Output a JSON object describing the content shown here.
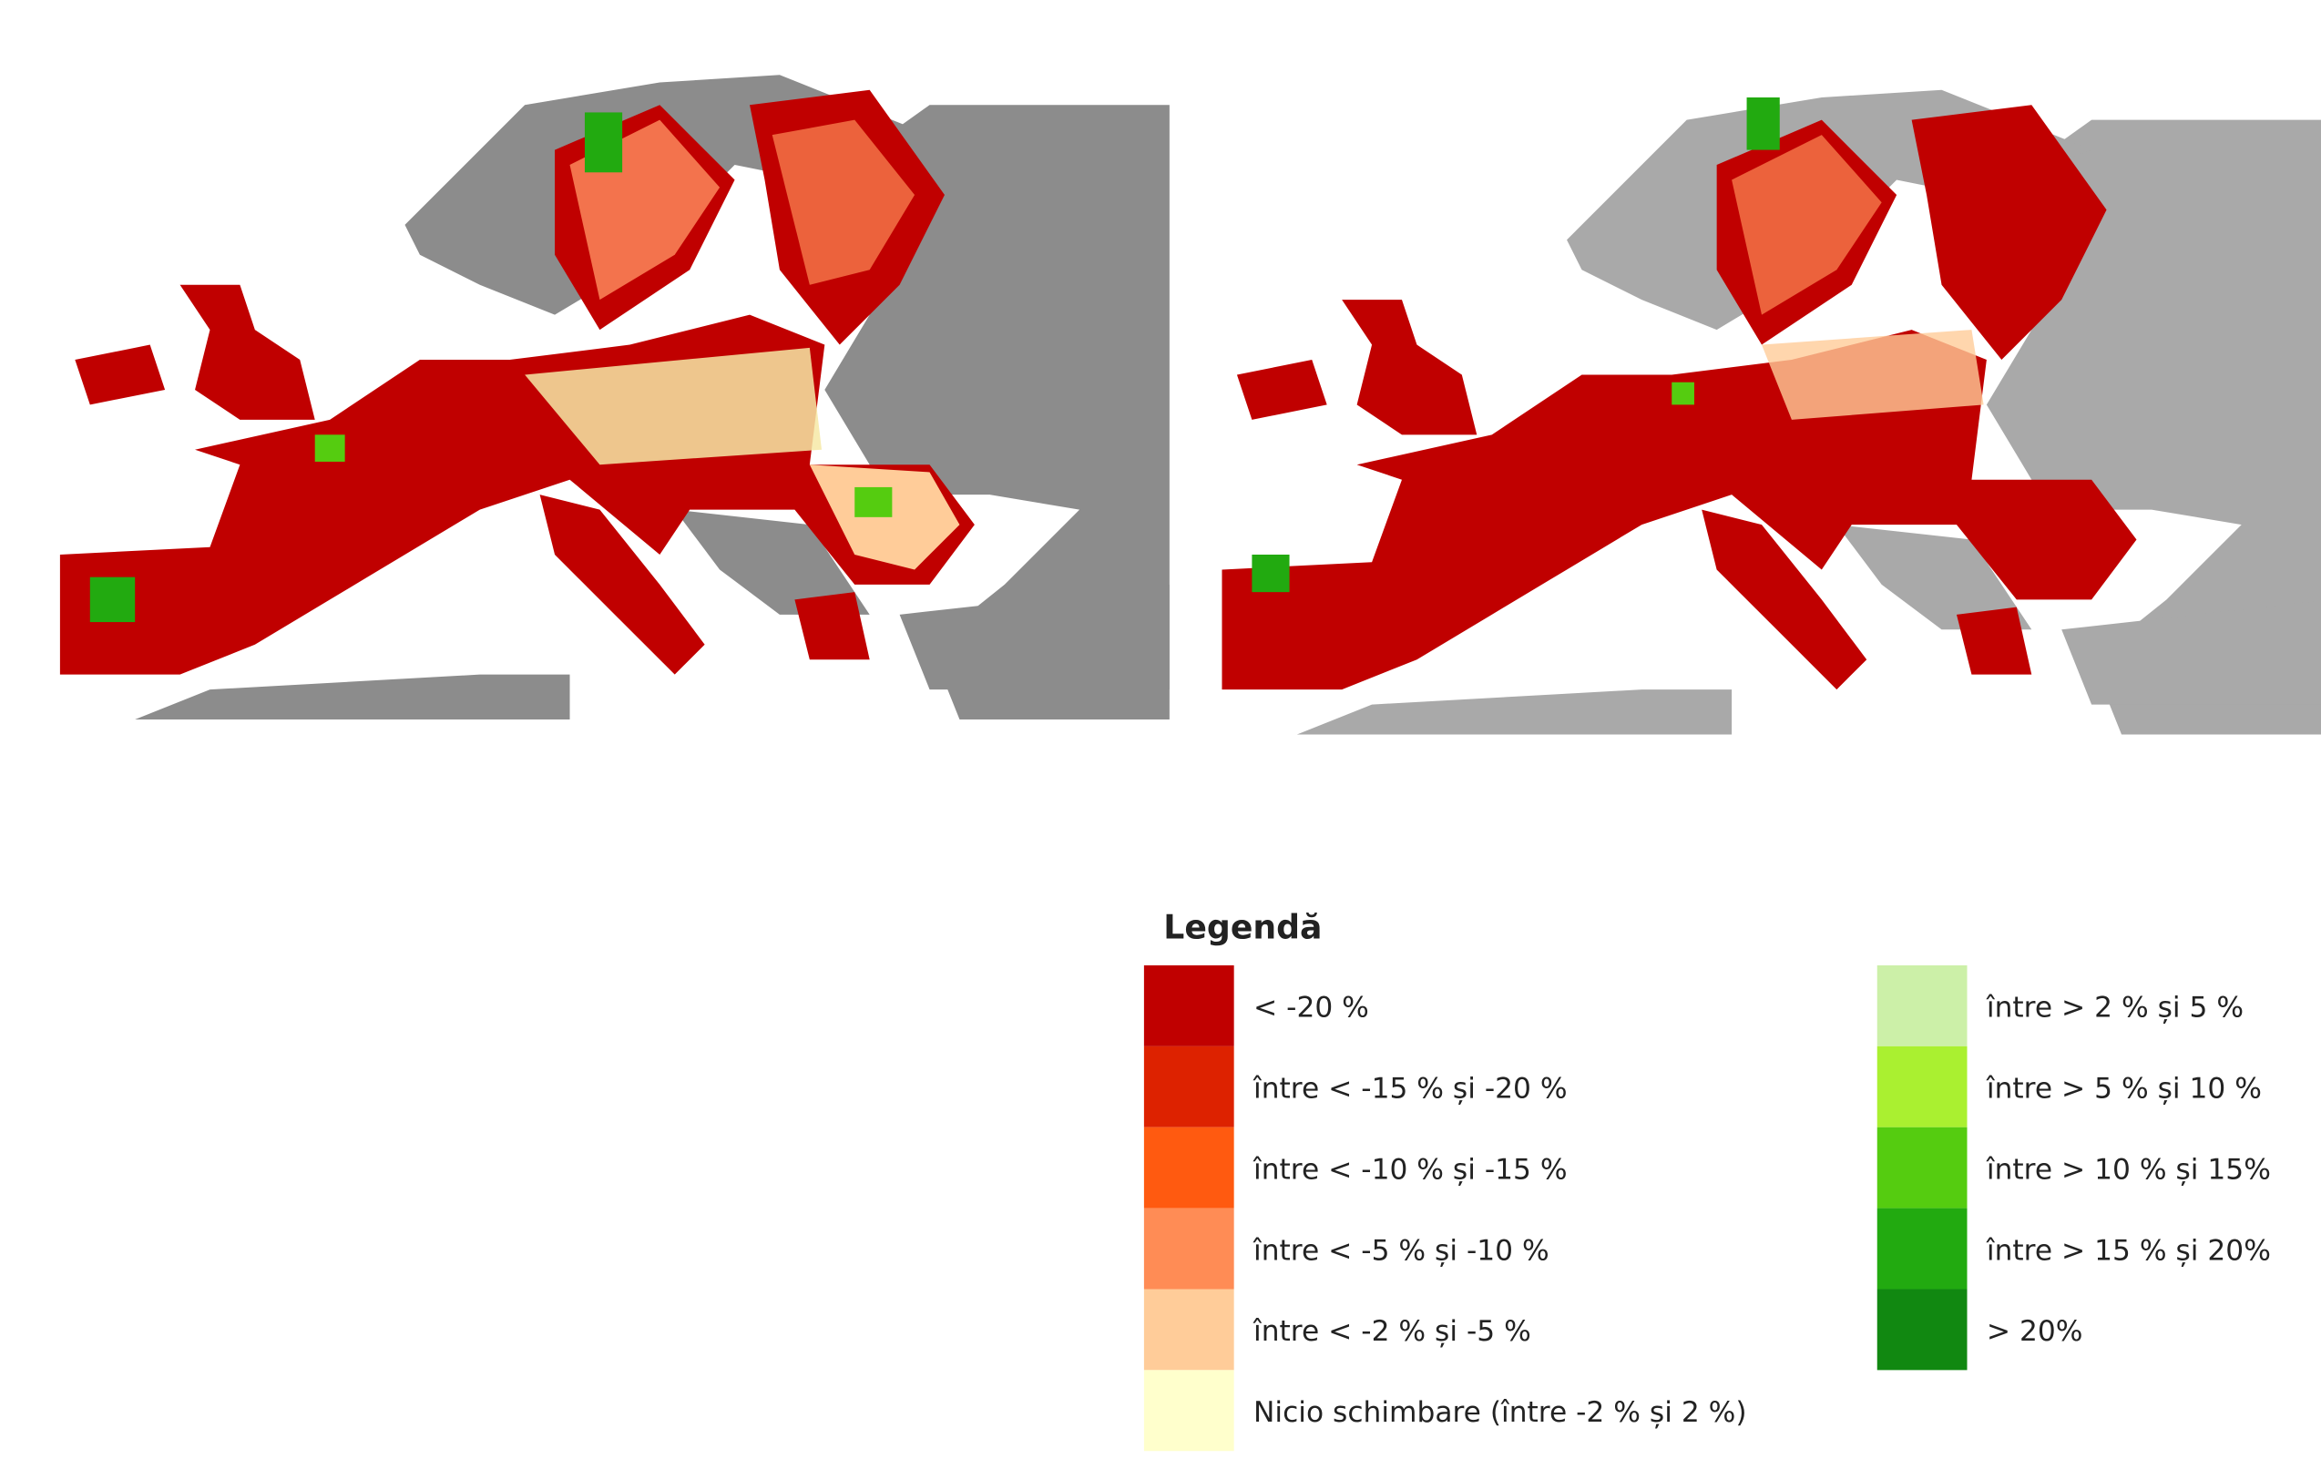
{
  "legend": {
    "title": "Legendă",
    "items": [
      {
        "label": "< -20 %",
        "color": "#c00000"
      },
      {
        "label": "între < -15 % și -20 %",
        "color": "#dd2200"
      },
      {
        "label": "între < -10 % și -15 %",
        "color": "#ff5a10"
      },
      {
        "label": "între < -5 % și -10 %",
        "color": "#ff8c55"
      },
      {
        "label": "între < -2 % și -5 %",
        "color": "#ffcc99"
      },
      {
        "label": "Nicio schimbare (între -2 % și 2 %)",
        "color": "#ffffcc"
      },
      {
        "label": "între > 2 % și 5 %",
        "color": "#ccf0a8"
      },
      {
        "label": "între > 5 % și 10 %",
        "color": "#aaf030"
      },
      {
        "label": "între > 10 % și 15%",
        "color": "#55cc10"
      },
      {
        "label": "între > 15 % și 20%",
        "color": "#22aa10"
      },
      {
        "label": "> 20%",
        "color": "#118811"
      }
    ]
  }
}
